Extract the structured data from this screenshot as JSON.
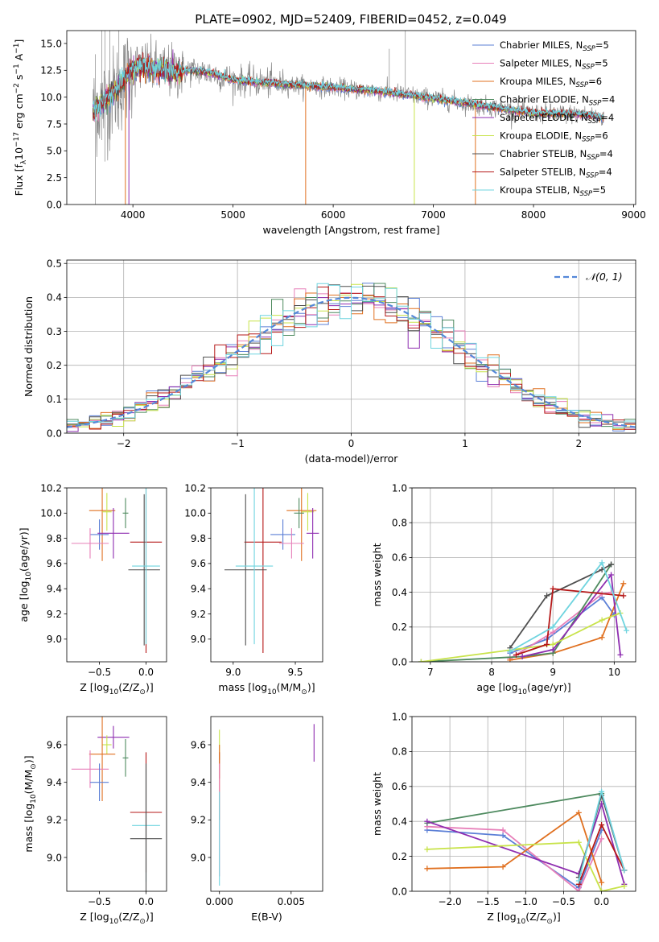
{
  "suptitle": "PLATE=0902, MJD=52409, FIBERID=0452, z=0.049",
  "colors": {
    "chab_miles": "#5b7fd6",
    "salp_miles": "#e77fb9",
    "krou_miles": "#e07020",
    "chab_elodie": "#4e8a5f",
    "salp_elodie": "#8e2db0",
    "krou_elodie": "#c8e34a",
    "chab_stelib": "#4f4f4f",
    "salp_stelib": "#b51818",
    "krou_stelib": "#6fd4df"
  },
  "chart_data": [
    {
      "id": "spectrum",
      "type": "line",
      "xlabel": "wavelength [Angstrom, rest frame]",
      "ylabel": "Flux [f$_\\lambda$10$^{-17}$ erg cm$^{-2}$ s$^{-1}$ A$^{-1}$]",
      "ylabel_parts": [
        "Flux [f",
        "λ",
        "10",
        "−17",
        " erg cm",
        "−2",
        " s",
        "−1",
        " A",
        "−1",
        "]"
      ],
      "xlim": [
        3340,
        9020
      ],
      "ylim": [
        0,
        16.2
      ],
      "xticks": [
        4000,
        5000,
        6000,
        7000,
        8000,
        9000
      ],
      "yticks": [
        0.0,
        2.5,
        5.0,
        7.5,
        10.0,
        12.5,
        15.0
      ],
      "ytick_labels": [
        "0.0",
        "2.5",
        "5.0",
        "7.5",
        "10.0",
        "12.5",
        "15.0"
      ],
      "legend_position": "upper right",
      "observed_spectrum": {
        "color": "#888888",
        "continuum_points": [
          [
            3600,
            8.6
          ],
          [
            3700,
            9.5
          ],
          [
            3800,
            10.3
          ],
          [
            3900,
            11.4
          ],
          [
            4000,
            12.6
          ],
          [
            4100,
            12.9
          ],
          [
            4200,
            12.6
          ],
          [
            4400,
            12.3
          ],
          [
            4600,
            12.5
          ],
          [
            4800,
            12.2
          ],
          [
            5000,
            11.6
          ],
          [
            5500,
            11.2
          ],
          [
            6000,
            10.9
          ],
          [
            6500,
            10.5
          ],
          [
            7000,
            9.9
          ],
          [
            7500,
            9.2
          ],
          [
            8000,
            8.5
          ],
          [
            8500,
            8.4
          ],
          [
            8700,
            8.1
          ]
        ]
      },
      "legend": [
        {
          "label": "Chabrier MILES, N",
          "sub": "SSP",
          "suffix": "=5",
          "color_key": "chab_miles"
        },
        {
          "label": "Salpeter MILES, N",
          "sub": "SSP",
          "suffix": "=5",
          "color_key": "salp_miles"
        },
        {
          "label": "Kroupa MILES, N",
          "sub": "SSP",
          "suffix": "=6",
          "color_key": "krou_miles"
        },
        {
          "label": "Chabrier ELODIE, N",
          "sub": "SSP",
          "suffix": "=4",
          "color_key": "chab_elodie"
        },
        {
          "label": "Salpeter ELODIE, N",
          "sub": "SSP",
          "suffix": "=4",
          "color_key": "salp_elodie"
        },
        {
          "label": "Kroupa ELODIE, N",
          "sub": "SSP",
          "suffix": "=6",
          "color_key": "krou_elodie"
        },
        {
          "label": "Chabrier STELIB, N",
          "sub": "SSP",
          "suffix": "=4",
          "color_key": "chab_stelib"
        },
        {
          "label": "Salpeter STELIB, N",
          "sub": "SSP",
          "suffix": "=4",
          "color_key": "salp_stelib"
        },
        {
          "label": "Kroupa STELIB, N",
          "sub": "SSP",
          "suffix": "=5",
          "color_key": "krou_stelib"
        }
      ]
    },
    {
      "id": "residuals",
      "type": "histogram",
      "xlabel": "(data-model)/error",
      "ylabel": "Normed distribution",
      "xlim": [
        -2.5,
        2.5
      ],
      "ylim": [
        0,
        0.51
      ],
      "xticks": [
        -2,
        -1,
        0,
        1,
        2
      ],
      "xtick_labels": [
        "−2",
        "−1",
        "0",
        "1",
        "2"
      ],
      "yticks": [
        0.0,
        0.1,
        0.2,
        0.3,
        0.4,
        0.5
      ],
      "ytick_labels": [
        "0.0",
        "0.1",
        "0.2",
        "0.3",
        "0.4",
        "0.5"
      ],
      "grid": true,
      "bin_width": 0.1,
      "reference_curve": {
        "label": "𝒩(0, 1)",
        "mean": 0,
        "sigma": 1,
        "color": "#5588d8",
        "style": "dashed"
      }
    },
    {
      "id": "z_vs_age",
      "type": "errorbar",
      "xlabel": "Z [log$_{10}$(Z/Z$_\\odot$)]",
      "ylabel": "age  [log$_{10}$(age/yr)]",
      "xlim": [
        -0.85,
        0.22
      ],
      "ylim": [
        8.82,
        10.2
      ],
      "xticks": [
        -0.5,
        0.0
      ],
      "xtick_labels": [
        "−0.5",
        "0.0"
      ],
      "yticks": [
        9.0,
        9.2,
        9.4,
        9.6,
        9.8,
        10.0,
        10.2
      ],
      "ytick_labels": [
        "9.0",
        "9.2",
        "9.4",
        "9.6",
        "9.8",
        "10.0",
        "10.2"
      ],
      "points": [
        {
          "c": "krou_miles",
          "x": -0.47,
          "xerr": 0.14,
          "y": 10.02,
          "yerr": 0.4
        },
        {
          "c": "krou_elodie",
          "x": -0.42,
          "xerr": 0.05,
          "y": 10.01,
          "yerr": 0.15
        },
        {
          "c": "chab_elodie",
          "x": -0.22,
          "xerr": 0.03,
          "y": 10.0,
          "yerr": 0.12
        },
        {
          "c": "chab_miles",
          "x": -0.5,
          "xerr": 0.1,
          "y": 9.83,
          "yerr": 0.12
        },
        {
          "c": "salp_elodie",
          "x": -0.35,
          "xerr": 0.17,
          "y": 9.84,
          "yerr": 0.2
        },
        {
          "c": "salp_miles",
          "x": -0.6,
          "xerr": 0.2,
          "y": 9.76,
          "yerr": 0.12
        },
        {
          "c": "salp_stelib",
          "x": 0.0,
          "xerr": 0.17,
          "y": 9.77,
          "yerr": 0.88
        },
        {
          "c": "chab_stelib",
          "x": -0.02,
          "xerr": 0.17,
          "y": 9.55,
          "yerr": 0.6
        },
        {
          "c": "krou_stelib",
          "x": 0.0,
          "xerr": 0.15,
          "y": 9.58,
          "yerr": 0.62
        }
      ]
    },
    {
      "id": "mass_vs_age",
      "type": "errorbar",
      "xlabel": "mass [log$_{10}$(M/M$_\\odot$)]",
      "ylabel": "",
      "xlim": [
        8.82,
        9.72
      ],
      "ylim": [
        8.82,
        10.2
      ],
      "xticks": [
        9.0,
        9.5
      ],
      "xtick_labels": [
        "9.0",
        "9.5"
      ],
      "yticks": [
        9.0,
        9.2,
        9.4,
        9.6,
        9.8,
        10.0,
        10.2
      ],
      "ytick_labels": [
        "9.0",
        "9.2",
        "9.4",
        "9.6",
        "9.8",
        "10.0",
        "10.2"
      ],
      "points": [
        {
          "c": "krou_miles",
          "x": 9.55,
          "xerr": 0.12,
          "y": 10.02,
          "yerr": 0.4
        },
        {
          "c": "krou_elodie",
          "x": 9.6,
          "xerr": 0.05,
          "y": 10.01,
          "yerr": 0.15
        },
        {
          "c": "chab_elodie",
          "x": 9.53,
          "xerr": 0.04,
          "y": 10.0,
          "yerr": 0.12
        },
        {
          "c": "chab_miles",
          "x": 9.4,
          "xerr": 0.1,
          "y": 9.83,
          "yerr": 0.12
        },
        {
          "c": "salp_elodie",
          "x": 9.64,
          "xerr": 0.05,
          "y": 9.84,
          "yerr": 0.2
        },
        {
          "c": "salp_miles",
          "x": 9.47,
          "xerr": 0.1,
          "y": 9.76,
          "yerr": 0.12
        },
        {
          "c": "salp_stelib",
          "x": 9.24,
          "xerr": 0.15,
          "y": 9.77,
          "yerr": 0.88
        },
        {
          "c": "chab_stelib",
          "x": 9.1,
          "xerr": 0.17,
          "y": 9.55,
          "yerr": 0.6
        },
        {
          "c": "krou_stelib",
          "x": 9.17,
          "xerr": 0.15,
          "y": 9.58,
          "yerr": 0.62
        }
      ]
    },
    {
      "id": "age_vs_weight",
      "type": "line",
      "xlabel": "age  [log$_{10}$(age/yr)]",
      "ylabel": "mass weight",
      "xlim": [
        6.7,
        10.35
      ],
      "ylim": [
        0,
        1.0
      ],
      "xticks": [
        7,
        8,
        9,
        10
      ],
      "xtick_labels": [
        "7",
        "8",
        "9",
        "10"
      ],
      "yticks": [
        0.0,
        0.2,
        0.4,
        0.6,
        0.8,
        1.0
      ],
      "ytick_labels": [
        "0.0",
        "0.2",
        "0.4",
        "0.6",
        "0.8",
        "1.0"
      ],
      "grid": true,
      "series": [
        {
          "c": "chab_miles",
          "x": [
            8.3,
            8.9,
            9.8,
            10.0
          ],
          "y": [
            0.05,
            0.13,
            0.37,
            0.27
          ]
        },
        {
          "c": "salp_miles",
          "x": [
            8.3,
            9.0,
            9.8,
            9.95
          ],
          "y": [
            0.02,
            0.17,
            0.39,
            0.4
          ]
        },
        {
          "c": "krou_miles",
          "x": [
            8.3,
            9.0,
            9.8,
            10.15
          ],
          "y": [
            0.01,
            0.05,
            0.14,
            0.45
          ]
        },
        {
          "c": "chab_elodie",
          "x": [
            6.85,
            8.5,
            9.0,
            9.95
          ],
          "y": [
            0.0,
            0.03,
            0.05,
            0.56
          ]
        },
        {
          "c": "salp_elodie",
          "x": [
            8.5,
            9.0,
            9.95,
            10.1
          ],
          "y": [
            0.03,
            0.07,
            0.5,
            0.04
          ]
        },
        {
          "c": "krou_elodie",
          "x": [
            6.85,
            9.0,
            9.8,
            10.1
          ],
          "y": [
            0.0,
            0.1,
            0.24,
            0.28
          ]
        },
        {
          "c": "chab_stelib",
          "x": [
            8.3,
            8.9,
            9.8,
            9.95
          ],
          "y": [
            0.08,
            0.38,
            0.53,
            0.56
          ]
        },
        {
          "c": "salp_stelib",
          "x": [
            8.4,
            8.9,
            9.0,
            10.15
          ],
          "y": [
            0.04,
            0.1,
            0.42,
            0.38
          ]
        },
        {
          "c": "krou_stelib",
          "x": [
            8.3,
            9.0,
            9.8,
            10.2
          ],
          "y": [
            0.06,
            0.2,
            0.57,
            0.18
          ]
        }
      ]
    },
    {
      "id": "z_vs_mass",
      "type": "errorbar",
      "xlabel": "Z [log$_{10}$(Z/Z$_\\odot$)]",
      "ylabel": "mass [log$_{10}$(M/M$_\\odot$)]",
      "xlim": [
        -0.85,
        0.22
      ],
      "ylim": [
        8.82,
        9.75
      ],
      "xticks": [
        -0.5,
        0.0
      ],
      "xtick_labels": [
        "−0.5",
        "0.0"
      ],
      "yticks": [
        9.0,
        9.2,
        9.4,
        9.6
      ],
      "ytick_labels": [
        "9.0",
        "9.2",
        "9.4",
        "9.6"
      ],
      "points": [
        {
          "c": "salp_elodie",
          "x": -0.35,
          "xerr": 0.17,
          "y": 9.64,
          "yerr": 0.06
        },
        {
          "c": "krou_elodie",
          "x": -0.42,
          "xerr": 0.05,
          "y": 9.6,
          "yerr": 0.05
        },
        {
          "c": "krou_miles",
          "x": -0.47,
          "xerr": 0.14,
          "y": 9.55,
          "yerr": 0.25
        },
        {
          "c": "chab_elodie",
          "x": -0.22,
          "xerr": 0.03,
          "y": 9.53,
          "yerr": 0.1
        },
        {
          "c": "salp_miles",
          "x": -0.6,
          "xerr": 0.2,
          "y": 9.47,
          "yerr": 0.1
        },
        {
          "c": "chab_miles",
          "x": -0.5,
          "xerr": 0.1,
          "y": 9.4,
          "yerr": 0.1
        },
        {
          "c": "salp_stelib",
          "x": 0.0,
          "xerr": 0.17,
          "y": 9.24,
          "yerr": 0.32
        },
        {
          "c": "krou_stelib",
          "x": 0.0,
          "xerr": 0.15,
          "y": 9.17,
          "yerr": 0.3
        },
        {
          "c": "chab_stelib",
          "x": 0.0,
          "xerr": 0.17,
          "y": 9.1,
          "yerr": 0.4
        }
      ]
    },
    {
      "id": "ebv_vs_mass",
      "type": "errorbar",
      "xlabel": "E(B-V)",
      "ylabel": "",
      "xlim": [
        -0.0006,
        0.0072
      ],
      "ylim": [
        8.82,
        9.75
      ],
      "xticks": [
        0.0,
        0.005
      ],
      "xtick_labels": [
        "0.000",
        "0.005"
      ],
      "yticks": [
        9.0,
        9.2,
        9.4,
        9.6
      ],
      "ytick_labels": [
        "9.0",
        "9.2",
        "9.4",
        "9.6"
      ],
      "points": [
        {
          "c": "krou_elodie",
          "x": 0.0,
          "xerr": 0,
          "y": 9.6,
          "yerr": 0.08
        },
        {
          "c": "salp_stelib",
          "x": 0.0,
          "xerr": 0,
          "y": 9.49,
          "yerr": 0.07
        },
        {
          "c": "krou_miles",
          "x": 0.0,
          "xerr": 0,
          "y": 9.4,
          "yerr": 0.2
        },
        {
          "c": "salp_miles",
          "x": 0.0,
          "xerr": 0,
          "y": 9.2,
          "yerr": 0.3
        },
        {
          "c": "krou_stelib",
          "x": 0.0,
          "xerr": 0,
          "y": 9.1,
          "yerr": 0.25
        },
        {
          "c": "salp_elodie",
          "x": 0.0066,
          "xerr": 0,
          "y": 9.61,
          "yerr": 0.1
        }
      ]
    },
    {
      "id": "z_vs_weight",
      "type": "line",
      "xlabel": "Z [log$_{10}$(Z/Z$_\\odot$)]",
      "ylabel": "mass weight",
      "xlim": [
        -2.5,
        0.45
      ],
      "ylim": [
        0,
        1.0
      ],
      "xticks": [
        -2.0,
        -1.5,
        -1.0,
        -0.5,
        0.0
      ],
      "xtick_labels": [
        "−2.0",
        "−1.5",
        "−1.0",
        "−0.5",
        "0.0"
      ],
      "yticks": [
        0.0,
        0.2,
        0.4,
        0.6,
        0.8,
        1.0
      ],
      "ytick_labels": [
        "0.0",
        "0.2",
        "0.4",
        "0.6",
        "0.8",
        "1.0"
      ],
      "grid": true,
      "series": [
        {
          "c": "chab_miles",
          "x": [
            -2.3,
            -1.3,
            -0.3,
            0.0
          ],
          "y": [
            0.35,
            0.32,
            0.02,
            0.35
          ]
        },
        {
          "c": "salp_miles",
          "x": [
            -2.3,
            -1.3,
            -0.3,
            0.0
          ],
          "y": [
            0.37,
            0.35,
            0.0,
            0.3
          ]
        },
        {
          "c": "krou_miles",
          "x": [
            -2.3,
            -1.3,
            -0.3,
            0.0
          ],
          "y": [
            0.13,
            0.14,
            0.45,
            0.05
          ]
        },
        {
          "c": "chab_elodie",
          "x": [
            -2.3,
            0.0
          ],
          "y": [
            0.39,
            0.56
          ]
        },
        {
          "c": "salp_elodie",
          "x": [
            -2.3,
            -0.3,
            0.0,
            0.3
          ],
          "y": [
            0.4,
            0.1,
            0.5,
            0.04
          ]
        },
        {
          "c": "krou_elodie",
          "x": [
            -2.3,
            -0.3,
            0.0,
            0.3
          ],
          "y": [
            0.24,
            0.28,
            0.0,
            0.03
          ]
        },
        {
          "c": "chab_stelib",
          "x": [
            -0.3,
            0.0,
            0.3
          ],
          "y": [
            0.08,
            0.55,
            0.12
          ]
        },
        {
          "c": "salp_stelib",
          "x": [
            -0.3,
            0.0,
            0.3
          ],
          "y": [
            0.04,
            0.38,
            0.12
          ]
        },
        {
          "c": "krou_stelib",
          "x": [
            -0.3,
            0.0,
            0.3
          ],
          "y": [
            0.06,
            0.57,
            0.12
          ]
        }
      ]
    }
  ]
}
